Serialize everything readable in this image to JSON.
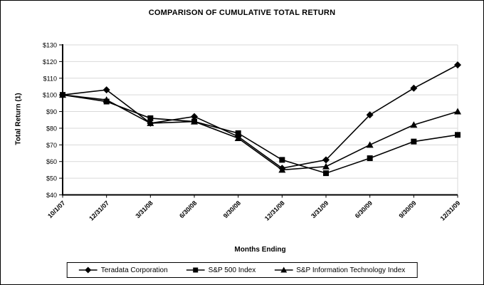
{
  "chart_data": {
    "type": "line",
    "title": "COMPARISON OF CUMULATIVE TOTAL RETURN",
    "xlabel": "Months Ending",
    "ylabel": "Total Return (1)",
    "categories": [
      "10/1/07",
      "12/31/07",
      "3/31/08",
      "6/30/08",
      "9/30/08",
      "12/31/08",
      "3/31/09",
      "6/30/09",
      "9/30/09",
      "12/31/09"
    ],
    "series": [
      {
        "name": "Teradata Corporation",
        "marker": "diamond",
        "values": [
          100,
          103,
          83,
          87,
          75,
          56,
          61,
          88,
          104,
          118
        ]
      },
      {
        "name": "S&P 500 Index",
        "marker": "square",
        "values": [
          100,
          96,
          86,
          84,
          77,
          61,
          53,
          62,
          72,
          76
        ]
      },
      {
        "name": "S&P Information Technology Index",
        "marker": "triangle",
        "values": [
          100,
          97,
          83,
          84,
          74,
          55,
          57,
          70,
          82,
          90
        ]
      }
    ],
    "ylim": [
      40,
      130
    ],
    "ytick_step": 10,
    "ytick_prefix": "$",
    "grid": true,
    "legend_position": "bottom",
    "colors": {
      "series": "#000000",
      "grid": "#d9d9d9",
      "axis": "#000000",
      "background": "#ffffff",
      "legend_border": "#000000"
    }
  }
}
